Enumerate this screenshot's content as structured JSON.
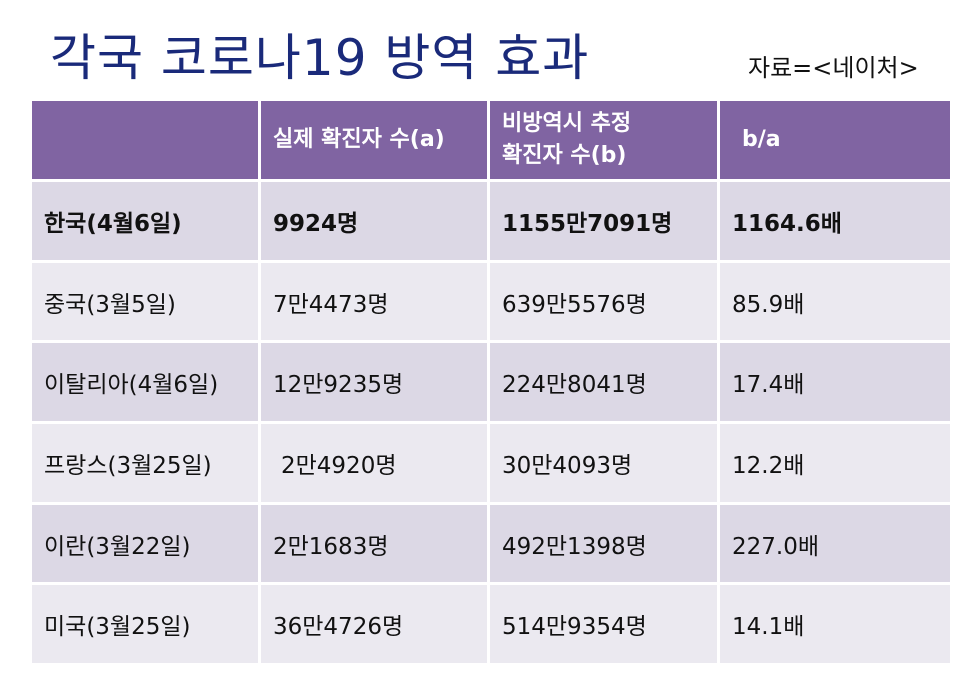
{
  "title": "각국 코로나19 방역 효과",
  "source": "자료=<네이처>",
  "table": {
    "headers": [
      "",
      "실제 확진자 수(a)",
      "비방역시 추정\n확진자 수(b)",
      "b/a"
    ],
    "rows": [
      [
        "한국(4월6일)",
        "9924명",
        "1155만7091명",
        "1164.6배"
      ],
      [
        "중국(3월5일)",
        "7만4473명",
        "639만5576명",
        "85.9배"
      ],
      [
        "이탈리아(4월6일)",
        "12만9235명",
        "224만8041명",
        "17.4배"
      ],
      [
        "프랑스(3월25일)",
        "2만4920명",
        "30만4093명",
        "12.2배"
      ],
      [
        "이란(3월22일)",
        "2만1683명",
        "492만1398명",
        "227.0배"
      ],
      [
        "미국(3월25일)",
        "36만4726명",
        "514만9354명",
        "14.1배"
      ]
    ]
  },
  "colors": {
    "title": "#1a2a7a",
    "header_bg": "#8064a2",
    "row_dark": "#dcd8e5",
    "row_light": "#ebe9f0"
  }
}
